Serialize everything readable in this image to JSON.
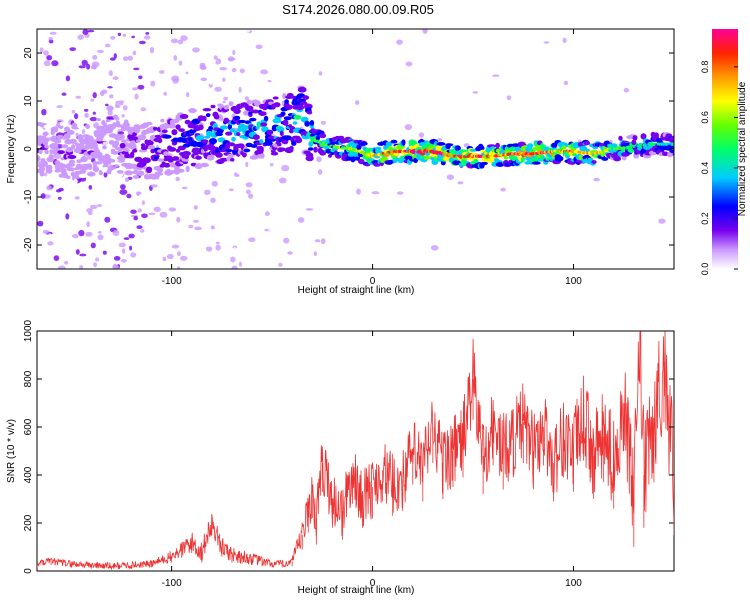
{
  "title": "S174.2026.080.00.09.R05",
  "chart_data": [
    {
      "type": "heatmap",
      "title": "S174.2026.080.00.09.R05",
      "xlabel": "Height of straight line (km)",
      "ylabel": "Frequency (Hz)",
      "xlim": [
        -167,
        150
      ],
      "ylim": [
        -25,
        25
      ],
      "xticks": [
        {
          "value": -100,
          "label": "-100"
        },
        {
          "value": 0,
          "label": "0"
        },
        {
          "value": 100,
          "label": "100"
        }
      ],
      "yticks": [
        {
          "value": -20,
          "label": "-20"
        },
        {
          "value": -10,
          "label": "-10"
        },
        {
          "value": 0,
          "label": "0"
        },
        {
          "value": 10,
          "label": "10"
        },
        {
          "value": 20,
          "label": "20"
        }
      ],
      "colorbar": {
        "label": "Normalized spectral amplitude",
        "range": [
          0,
          0.95
        ],
        "ticks": [
          {
            "value": 0.0,
            "label": "0.0"
          },
          {
            "value": 0.2,
            "label": "0.2"
          },
          {
            "value": 0.4,
            "label": "0.4"
          },
          {
            "value": 0.6,
            "label": "0.6"
          },
          {
            "value": 0.8,
            "label": "0.8"
          }
        ],
        "colors": [
          "#ffffff",
          "#8800ff",
          "#0000ff",
          "#00ffff",
          "#00ff00",
          "#ffff00",
          "#ff8800",
          "#ff0000",
          "#ff00aa"
        ]
      },
      "ridge": {
        "x": [
          -167,
          -150,
          -130,
          -115,
          -100,
          -80,
          -60,
          -45,
          -35,
          -30,
          -20,
          -10,
          0,
          10,
          20,
          30,
          40,
          50,
          60,
          70,
          80,
          90,
          100,
          110,
          120,
          130,
          140,
          150
        ],
        "freq": [
          0,
          -1,
          1,
          -1,
          1,
          3,
          4,
          5,
          7,
          2,
          0.5,
          0,
          -1.5,
          -0.5,
          -0.5,
          -0.5,
          -1.5,
          -1.5,
          -1.5,
          -1,
          -1,
          -0.5,
          -0.5,
          -1,
          0,
          0.5,
          1,
          1
        ],
        "amplitude": [
          0.15,
          0.15,
          0.15,
          0.25,
          0.3,
          0.4,
          0.45,
          0.45,
          0.45,
          0.5,
          0.55,
          0.6,
          0.7,
          0.85,
          0.9,
          0.9,
          0.85,
          0.9,
          0.8,
          0.8,
          0.85,
          0.8,
          0.75,
          0.7,
          0.55,
          0.5,
          0.45,
          0.4
        ]
      }
    },
    {
      "type": "line",
      "xlabel": "Height of straight line (km)",
      "ylabel": "SNR (10 * v/v)",
      "xlim": [
        -167,
        150
      ],
      "ylim": [
        0,
        1000
      ],
      "xticks": [
        {
          "value": -100,
          "label": "-100"
        },
        {
          "value": 0,
          "label": "0"
        },
        {
          "value": 100,
          "label": "100"
        }
      ],
      "yticks": [
        {
          "value": 0,
          "label": "0"
        },
        {
          "value": 200,
          "label": "200"
        },
        {
          "value": 400,
          "label": "400"
        },
        {
          "value": 600,
          "label": "600"
        },
        {
          "value": 800,
          "label": "800"
        },
        {
          "value": 1000,
          "label": "1000"
        }
      ],
      "color": "#ee3333",
      "series": [
        {
          "name": "SNR",
          "x": [
            -167,
            -160,
            -150,
            -140,
            -130,
            -120,
            -110,
            -100,
            -95,
            -90,
            -85,
            -80,
            -75,
            -70,
            -65,
            -60,
            -55,
            -50,
            -45,
            -40,
            -35,
            -32,
            -30,
            -28,
            -25,
            -20,
            -15,
            -10,
            -5,
            0,
            5,
            10,
            15,
            20,
            25,
            30,
            35,
            40,
            45,
            50,
            55,
            60,
            65,
            70,
            75,
            80,
            85,
            90,
            95,
            100,
            105,
            110,
            115,
            120,
            125,
            130,
            133,
            135,
            140,
            145,
            150
          ],
          "y": [
            30,
            40,
            30,
            25,
            20,
            25,
            30,
            60,
            90,
            120,
            80,
            200,
            100,
            70,
            60,
            50,
            40,
            30,
            30,
            40,
            150,
            250,
            330,
            220,
            450,
            300,
            250,
            400,
            300,
            350,
            420,
            360,
            380,
            500,
            430,
            600,
            450,
            500,
            550,
            800,
            480,
            600,
            500,
            550,
            620,
            500,
            600,
            450,
            560,
            500,
            640,
            480,
            560,
            450,
            700,
            300,
            1000,
            400,
            600,
            870,
            400
          ],
          "noise_amplitude": [
            15,
            15,
            15,
            15,
            15,
            15,
            15,
            25,
            35,
            45,
            45,
            50,
            40,
            35,
            30,
            25,
            20,
            15,
            15,
            20,
            60,
            90,
            110,
            110,
            120,
            120,
            120,
            120,
            120,
            130,
            130,
            130,
            130,
            140,
            140,
            150,
            150,
            150,
            160,
            170,
            160,
            160,
            160,
            160,
            170,
            160,
            160,
            160,
            170,
            170,
            180,
            180,
            190,
            190,
            200,
            200,
            220,
            220,
            230,
            250,
            250
          ]
        }
      ]
    }
  ]
}
